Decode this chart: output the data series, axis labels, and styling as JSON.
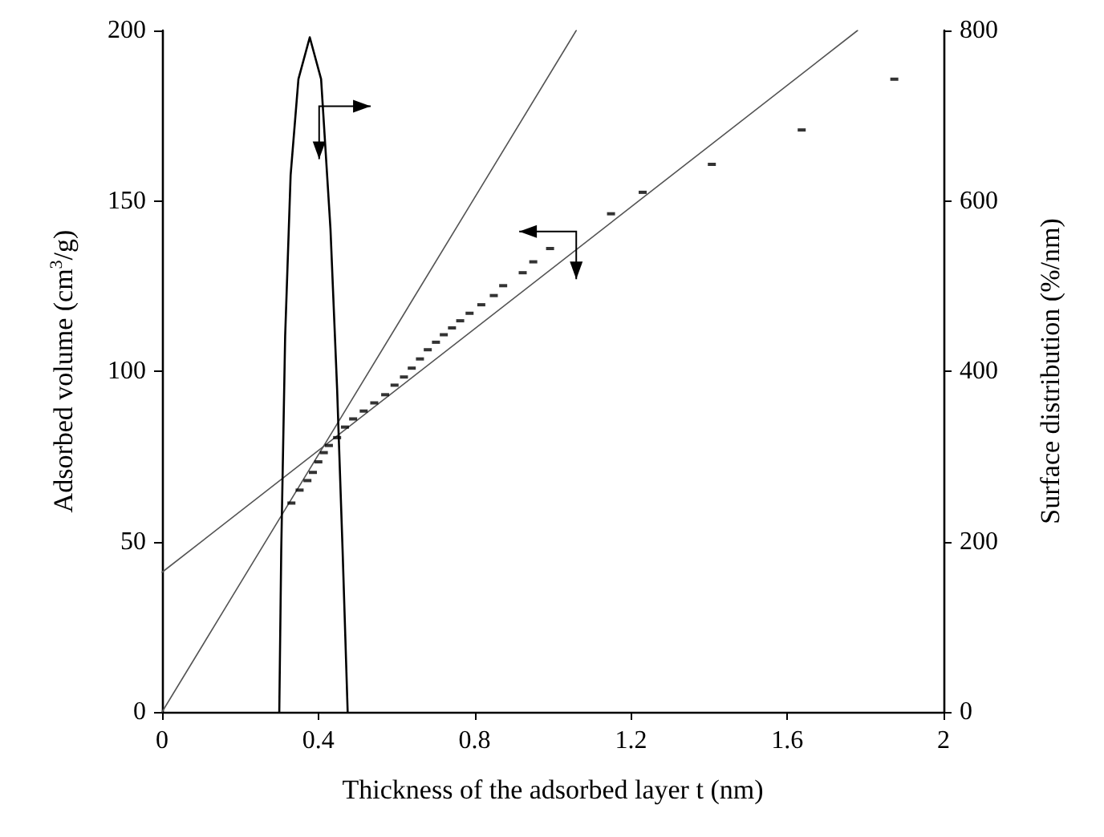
{
  "chart_data": {
    "type": "scatter",
    "xlabel": "Thickness of the adsorbed layer t (nm)",
    "ylabel": "Adsorbed volume (cm$^{3}$/g)",
    "y2label": "Surface distribution (%/nm)",
    "xlim": [
      0,
      2
    ],
    "xticks": [
      0,
      0.4,
      0.8,
      1.2,
      1.6,
      2
    ],
    "ylim": [
      0,
      200
    ],
    "yticks": [
      0,
      50,
      100,
      150,
      200
    ],
    "y2lim": [
      0,
      800
    ],
    "y2ticks": [
      0,
      200,
      400,
      600,
      800
    ],
    "grid": false,
    "marker": "square",
    "series": [
      {
        "color": "#000000",
        "x": [
          0.331,
          0.352,
          0.372,
          0.386,
          0.4,
          0.414,
          0.427,
          0.448,
          0.468,
          0.489,
          0.516,
          0.543,
          0.571,
          0.595,
          0.619,
          0.639,
          0.66,
          0.68,
          0.701,
          0.721,
          0.742,
          0.763,
          0.787,
          0.817,
          0.849,
          0.873,
          0.923,
          0.95,
          0.993,
          1.149,
          1.23,
          1.407,
          1.637,
          1.874
        ],
        "values": [
          61.3,
          65.1,
          67.9,
          70.3,
          73.4,
          76.1,
          78.2,
          80.5,
          83.6,
          86,
          88.3,
          90.7,
          93.1,
          95.9,
          98.3,
          100.9,
          103.6,
          106.3,
          108.5,
          110.7,
          112.7,
          114.8,
          117,
          119.5,
          122.2,
          125.1,
          128.9,
          132.1,
          136,
          146.2,
          152.5,
          160.7,
          170.8,
          185.7
        ]
      },
      {
        "type": "line",
        "color": "#555555",
        "marker": "none",
        "x": [
          0,
          1.06
        ],
        "values": [
          0,
          200
        ]
      },
      {
        "type": "line",
        "color": "#555555",
        "marker": "none",
        "x": [
          0,
          1.78
        ],
        "values": [
          41,
          200
        ]
      },
      {
        "type": "line",
        "color": "#000000",
        "marker": "none",
        "axis": "y2",
        "x": [
          0.3,
          0.305,
          0.315,
          0.329,
          0.349,
          0.378,
          0.407,
          0.431,
          0.448,
          0.462,
          0.475
        ],
        "values": [
          0,
          190,
          441,
          630,
          743,
          792,
          743,
          567,
          379,
          190,
          0
        ]
      }
    ]
  }
}
